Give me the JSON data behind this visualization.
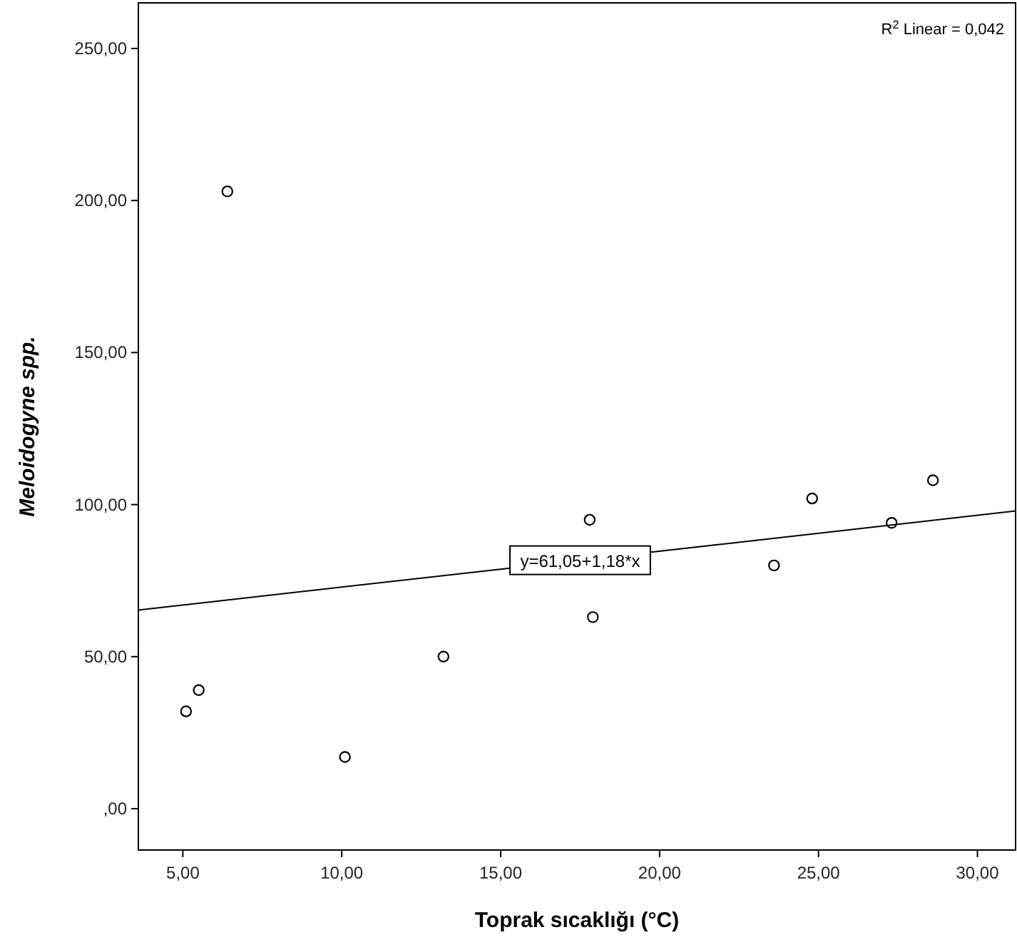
{
  "chart_data": {
    "type": "scatter",
    "xlabel": "Toprak sıcaklığı (°C)",
    "ylabel": "Meloidogyne spp.",
    "xlim": [
      3.6,
      31.2
    ],
    "ylim": [
      -13.6,
      265
    ],
    "xticks": [
      {
        "value": 5,
        "label": "5,00"
      },
      {
        "value": 10,
        "label": "10,00"
      },
      {
        "value": 15,
        "label": "15,00"
      },
      {
        "value": 20,
        "label": "20,00"
      },
      {
        "value": 25,
        "label": "25,00"
      },
      {
        "value": 30,
        "label": "30,00"
      }
    ],
    "yticks": [
      {
        "value": 0,
        "label": ",00"
      },
      {
        "value": 50,
        "label": "50,00"
      },
      {
        "value": 100,
        "label": "100,00"
      },
      {
        "value": 150,
        "label": "150,00"
      },
      {
        "value": 200,
        "label": "200,00"
      },
      {
        "value": 250,
        "label": "250,00"
      }
    ],
    "grid": false,
    "series": [
      {
        "marker": "circle",
        "color": "#000000",
        "x": [
          6.4,
          5.1,
          5.5,
          10.1,
          13.2,
          17.8,
          17.9,
          23.6,
          24.8,
          27.3,
          28.6
        ],
        "values": [
          203,
          32,
          39,
          17,
          50,
          95,
          63,
          80,
          102,
          94,
          108
        ]
      },
      {
        "type": "line",
        "marker": "none",
        "color": "#000000",
        "x": [
          3.6,
          31.2
        ],
        "values": [
          65.3,
          97.9
        ]
      }
    ],
    "annotations": [
      {
        "text": "y=61,05+1,18*x",
        "x": 17.5,
        "y": 81.7
      },
      "R$^{2}$ Linear = 0,042"
    ]
  }
}
